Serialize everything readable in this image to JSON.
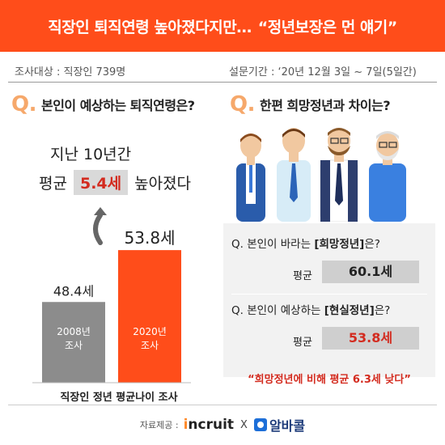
{
  "header": {
    "title": "직장인 퇴직연령 높아졌다지만…",
    "quote": "“정년보장은 먼 얘기”"
  },
  "meta": {
    "target": "조사대상 :  직장인 739명",
    "period": "설문기간 : ‘20년 12월 3일 ~ 7일(5일간)"
  },
  "left": {
    "q_mark": "Q.",
    "q_text": "본인이 예상하는 퇴직연령은?",
    "increase_line1": "지난 10년간",
    "increase_prefix": "평균",
    "increase_value": "5.4세",
    "increase_suffix": "높아졌다",
    "caption": "직장인 정년 평균나이 조사"
  },
  "chart_data": {
    "type": "bar",
    "categories": [
      "2008년 조사",
      "2020년 조사"
    ],
    "category_lines": [
      [
        "2008년",
        "조사"
      ],
      [
        "2020년",
        "조사"
      ]
    ],
    "values": [
      48.4,
      53.8
    ],
    "value_labels": [
      "48.4세",
      "53.8세"
    ],
    "colors": [
      "#8c8c8c",
      "#ff4d1a"
    ],
    "ylim": [
      40,
      56
    ],
    "title": "",
    "xlabel": "",
    "ylabel": ""
  },
  "right": {
    "q_mark": "Q.",
    "q_text": "한편 희망정년과 차이는?",
    "q1_prefix": "Q. 본인이 바라는 ",
    "q1_bold": "[희망정년]",
    "q1_suffix": "은?",
    "avg1_label": "평균",
    "avg1_value": "60.1세",
    "q2_prefix": "Q. 본인이 예상하는 ",
    "q2_bold": "[현실정년]",
    "q2_suffix": "은?",
    "avg2_label": "평균",
    "avg2_value": "53.8세",
    "conclusion": "“희망정년에 비해 평균 6.3세 낮다”"
  },
  "footer": {
    "source_label": "자료제공 :",
    "logo1": "incruit",
    "logo1_dot": "i",
    "logo1_rest": "ncruit",
    "x": "X",
    "logo2": "알바콜"
  }
}
